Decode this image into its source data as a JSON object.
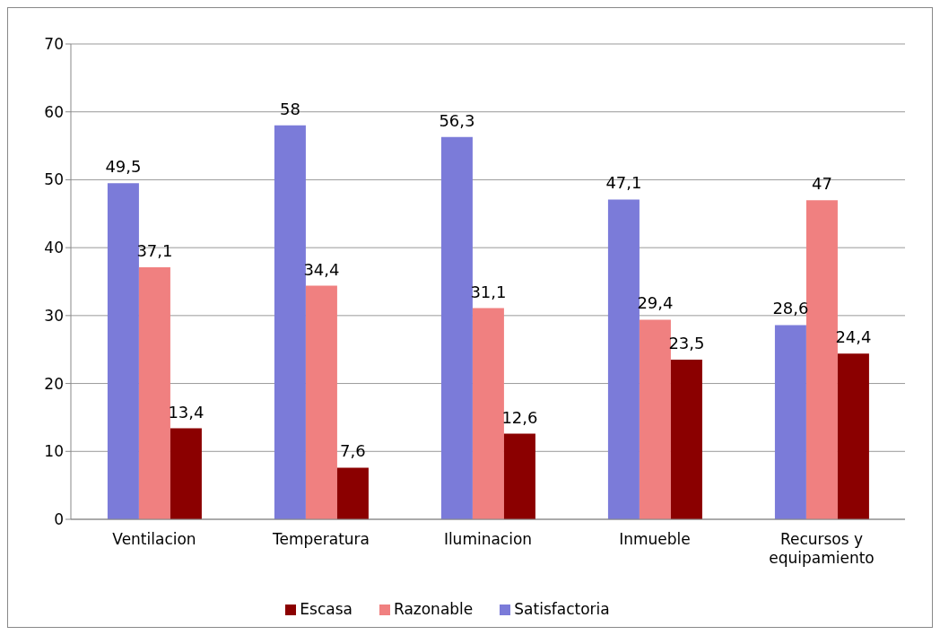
{
  "chart_data": {
    "type": "bar",
    "categories": [
      "Ventilacion",
      "Temperatura",
      "Iluminacion",
      "Inmueble",
      "Recursos y equipamiento"
    ],
    "series": [
      {
        "name": "Satisfactoria",
        "color": "#7b7bd9",
        "values": [
          49.5,
          58,
          56.3,
          47.1,
          28.6
        ],
        "value_labels": [
          "49,5",
          "58",
          "56,3",
          "47,1",
          "28,6"
        ]
      },
      {
        "name": "Razonable",
        "color": "#f08080",
        "values": [
          37.1,
          34.4,
          31.1,
          29.4,
          47
        ],
        "value_labels": [
          "37,1",
          "34,4",
          "31,1",
          "29,4",
          "47"
        ]
      },
      {
        "name": "Escasa",
        "color": "#8b0000",
        "values": [
          13.4,
          7.6,
          12.6,
          23.5,
          24.4
        ],
        "value_labels": [
          "13,4",
          "7,6",
          "12,6",
          "23,5",
          "24,4"
        ]
      }
    ],
    "ylim": [
      0,
      70
    ],
    "yticks": [
      0,
      10,
      20,
      30,
      40,
      50,
      60,
      70
    ],
    "grid": "y",
    "legend": "bottom"
  }
}
